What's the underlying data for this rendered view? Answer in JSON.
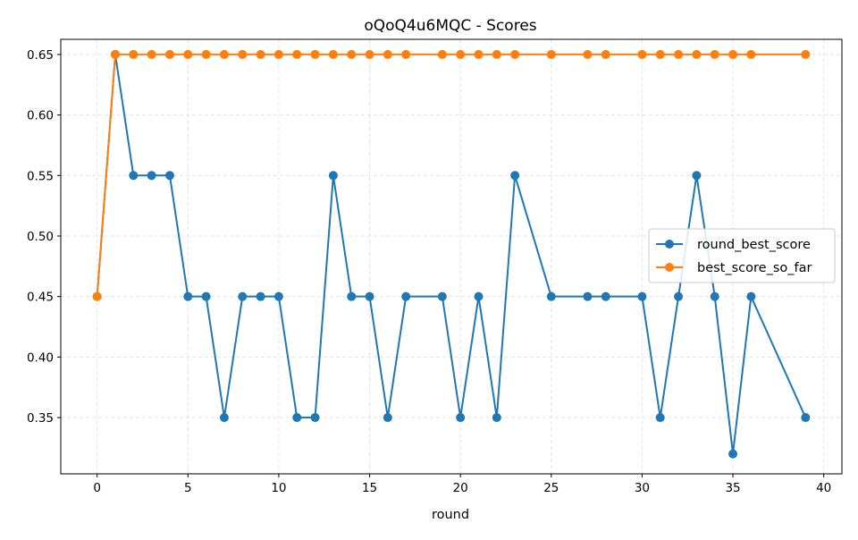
{
  "chart_data": {
    "type": "line",
    "title": "oQoQ4u6MQC - Scores",
    "xlabel": "round",
    "ylabel": "",
    "xlim": [
      -2,
      41
    ],
    "ylim": [
      0.3035,
      0.6625
    ],
    "xticks": [
      0,
      5,
      10,
      15,
      20,
      25,
      30,
      35,
      40
    ],
    "xtick_labels": [
      "0",
      "5",
      "10",
      "15",
      "20",
      "25",
      "30",
      "35",
      "40"
    ],
    "yticks": [
      0.35,
      0.4,
      0.45,
      0.5,
      0.55,
      0.6,
      0.65
    ],
    "ytick_labels": [
      "0.35",
      "0.40",
      "0.45",
      "0.50",
      "0.55",
      "0.60",
      "0.65"
    ],
    "grid": true,
    "legend_position": "center-right",
    "x": [
      0,
      1,
      2,
      3,
      4,
      5,
      6,
      7,
      8,
      9,
      10,
      11,
      12,
      13,
      14,
      15,
      16,
      17,
      19,
      20,
      21,
      22,
      23,
      25,
      27,
      28,
      30,
      31,
      32,
      33,
      34,
      35,
      36,
      39
    ],
    "series": [
      {
        "name": "round_best_score",
        "color": "#1f77b4",
        "values": [
          0.45,
          0.65,
          0.55,
          0.55,
          0.55,
          0.45,
          0.45,
          0.35,
          0.45,
          0.45,
          0.45,
          0.35,
          0.35,
          0.55,
          0.45,
          0.45,
          0.35,
          0.45,
          0.45,
          0.35,
          0.45,
          0.35,
          0.55,
          0.45,
          0.45,
          0.45,
          0.45,
          0.35,
          0.45,
          0.55,
          0.45,
          0.32,
          0.45,
          0.35
        ]
      },
      {
        "name": "best_score_so_far",
        "color": "#ff7f0e",
        "values": [
          0.45,
          0.65,
          0.65,
          0.65,
          0.65,
          0.65,
          0.65,
          0.65,
          0.65,
          0.65,
          0.65,
          0.65,
          0.65,
          0.65,
          0.65,
          0.65,
          0.65,
          0.65,
          0.65,
          0.65,
          0.65,
          0.65,
          0.65,
          0.65,
          0.65,
          0.65,
          0.65,
          0.65,
          0.65,
          0.65,
          0.65,
          0.65,
          0.65,
          0.65
        ]
      }
    ]
  }
}
